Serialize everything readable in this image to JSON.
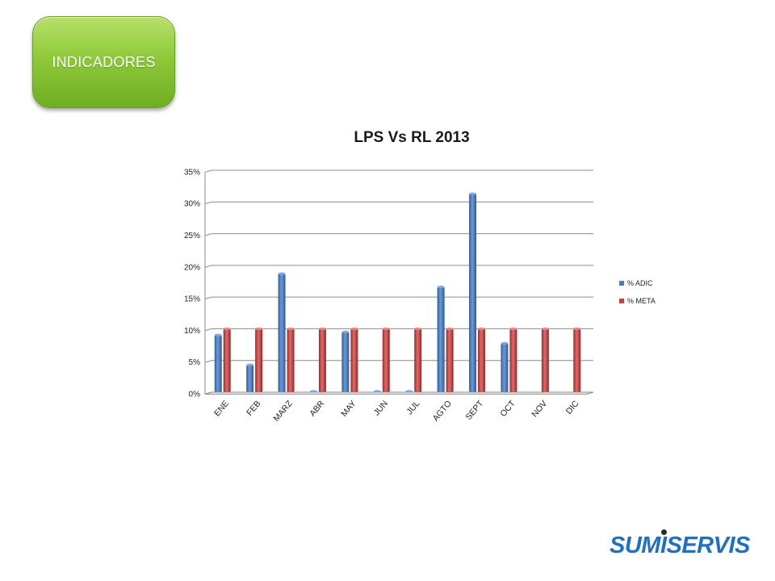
{
  "header": {
    "label": "INDICADORES"
  },
  "chart_data": {
    "type": "bar",
    "title": "LPS Vs RL 2013",
    "categories": [
      "ENE",
      "FEB",
      "MARZ",
      "ABR",
      "MAY",
      "JUN",
      "JUL",
      "AGTO",
      "SEPT",
      "OCT",
      "NOV",
      "DIC"
    ],
    "series": [
      {
        "name": "% ADIC",
        "color": "#4a7dc4",
        "values": [
          9.0,
          4.3,
          18.7,
          0,
          9.5,
          0,
          0,
          16.6,
          31.3,
          7.7,
          null,
          null
        ]
      },
      {
        "name": "% META",
        "color": "#c94040",
        "values": [
          10,
          10,
          10,
          10,
          10,
          10,
          10,
          10,
          10,
          10,
          10,
          10
        ]
      }
    ],
    "yticks": [
      "0%",
      "5%",
      "10%",
      "15%",
      "20%",
      "25%",
      "30%",
      "35%"
    ],
    "ylim": [
      0,
      35
    ],
    "grid": true,
    "legend": "right"
  },
  "logo": {
    "text": "SUMISERVIS"
  }
}
